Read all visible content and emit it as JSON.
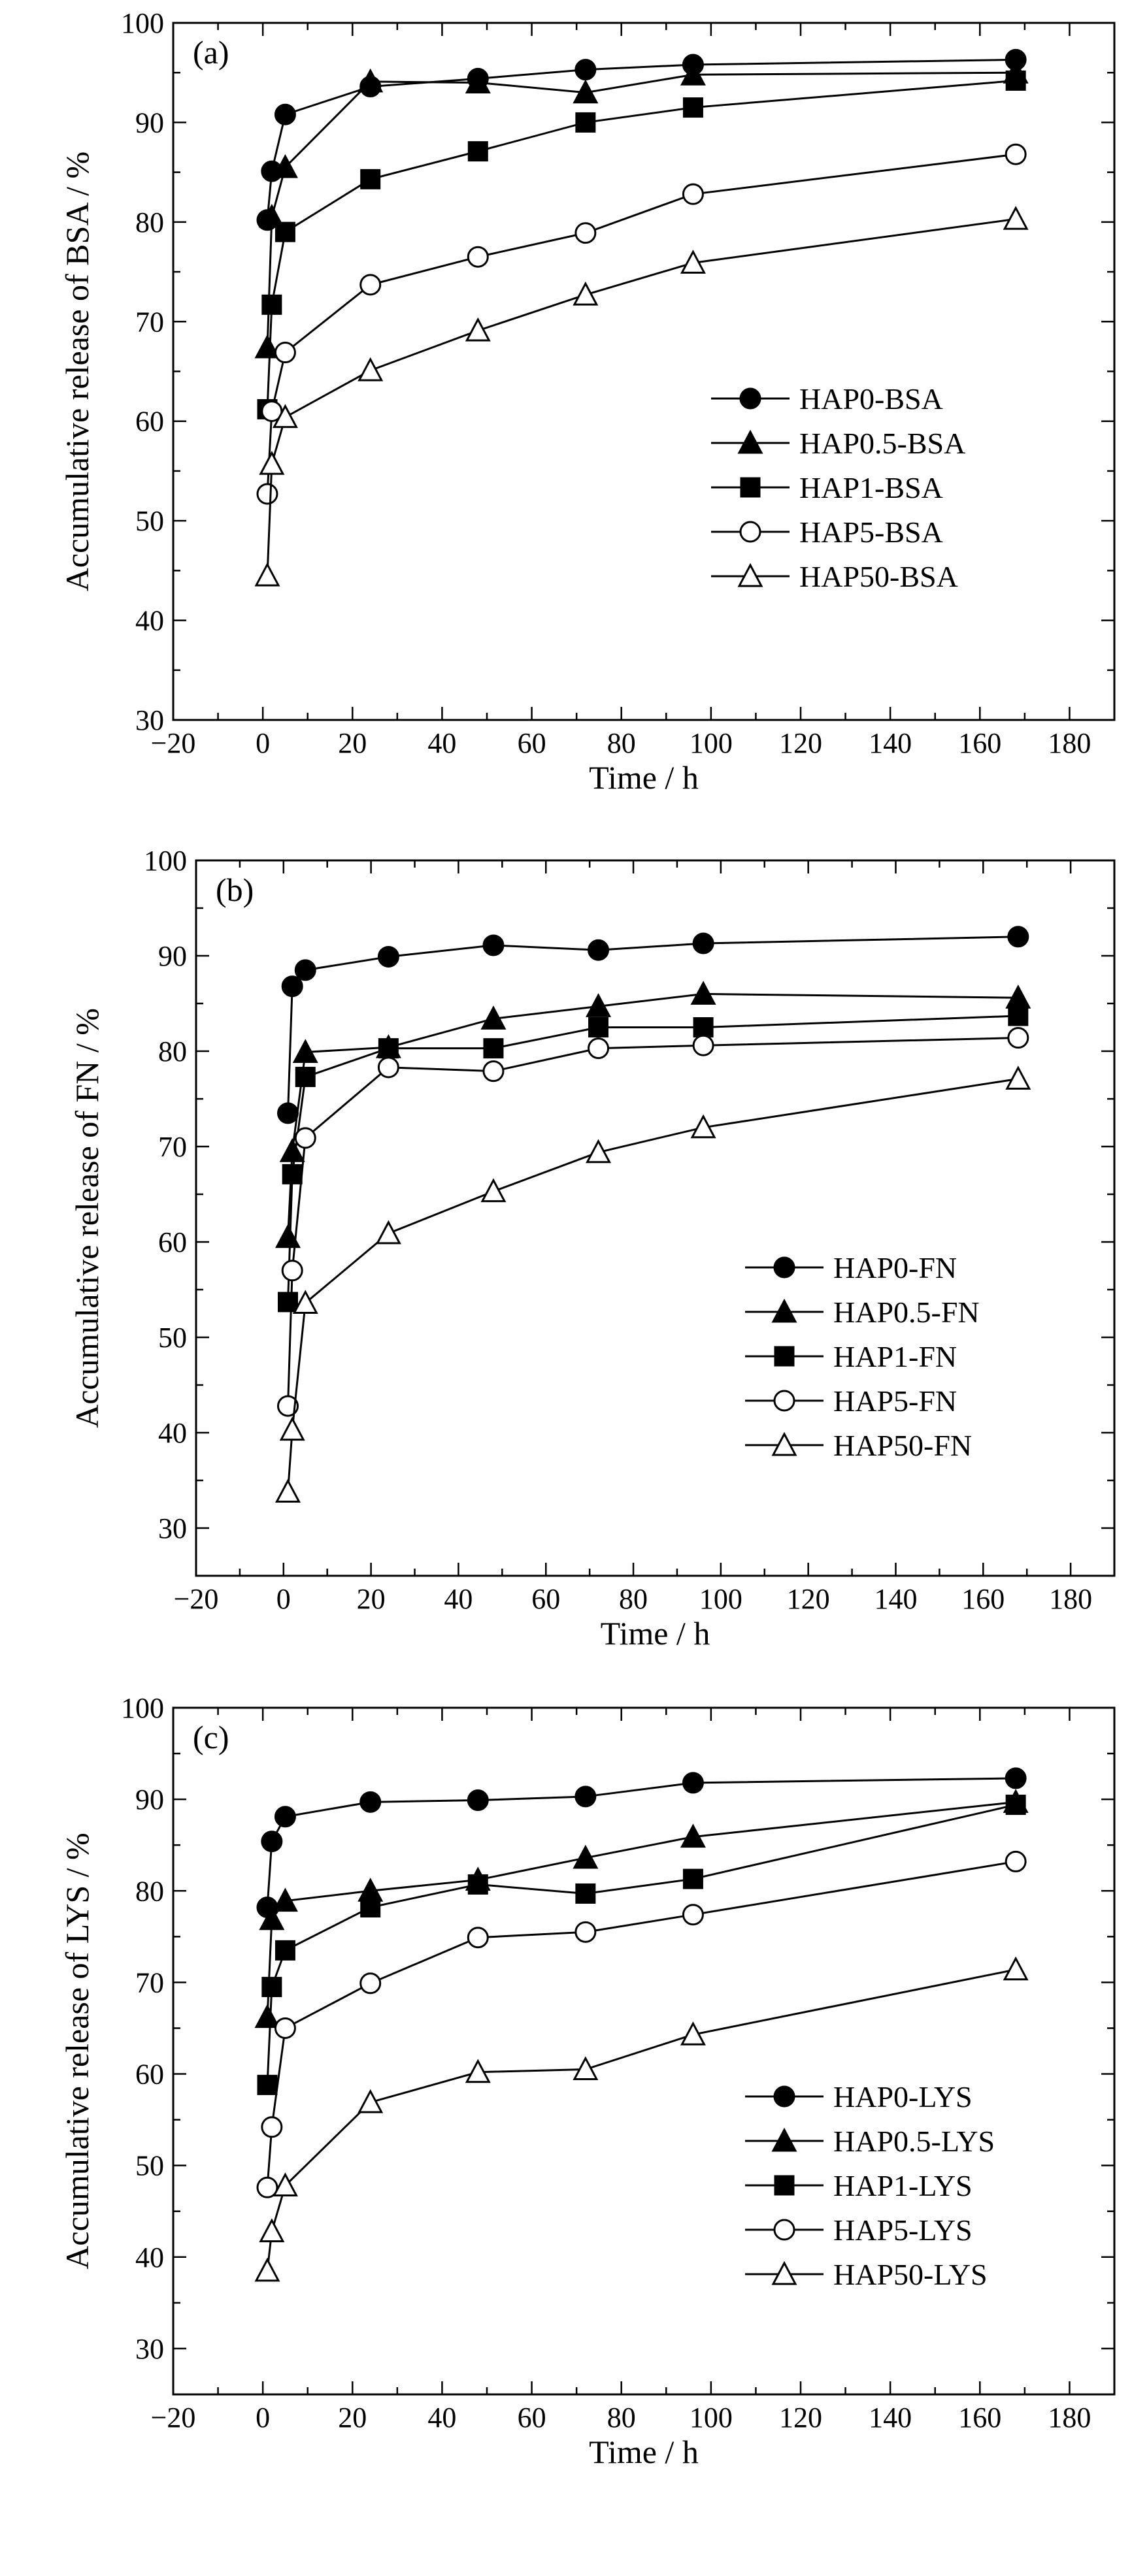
{
  "colors": {
    "ink": "#000000",
    "hollow": "#ffffff",
    "background": "#ffffff"
  },
  "chart_data": [
    {
      "type": "line",
      "panel_label": "(a)",
      "xlabel": "Time / h",
      "ylabel": "Accumulative release of BSA / %",
      "xlim": [
        -20,
        190
      ],
      "ylim": [
        30,
        100
      ],
      "x_ticks": [
        -20,
        0,
        20,
        40,
        60,
        80,
        100,
        120,
        140,
        160,
        180
      ],
      "y_ticks": [
        30,
        40,
        50,
        60,
        70,
        80,
        90,
        100
      ],
      "grid": false,
      "legend_position": "center-right",
      "x": [
        1,
        2,
        5,
        24,
        48,
        72,
        96,
        168
      ],
      "series": [
        {
          "name": "HAP0-BSA",
          "marker": "circle-filled",
          "values": [
            80.2,
            85.1,
            90.8,
            93.6,
            94.4,
            95.3,
            95.8,
            96.3
          ]
        },
        {
          "name": "HAP0.5-BSA",
          "marker": "triangle-filled",
          "values": [
            67.4,
            80.5,
            85.5,
            94.1,
            94.0,
            93.0,
            94.8,
            95.0
          ]
        },
        {
          "name": "HAP1-BSA",
          "marker": "square-filled",
          "values": [
            61.2,
            71.7,
            79.0,
            84.3,
            87.1,
            90.0,
            91.5,
            94.2
          ]
        },
        {
          "name": "HAP5-BSA",
          "marker": "circle-open",
          "values": [
            52.7,
            61.0,
            66.9,
            73.7,
            76.5,
            78.9,
            82.8,
            86.8
          ]
        },
        {
          "name": "HAP50-BSA",
          "marker": "triangle-open",
          "values": [
            44.5,
            55.7,
            60.4,
            65.1,
            69.1,
            72.7,
            75.9,
            80.3
          ]
        }
      ]
    },
    {
      "type": "line",
      "panel_label": "(b)",
      "xlabel": "Time / h",
      "ylabel": "Accumulative release of FN / %",
      "xlim": [
        -20,
        190
      ],
      "ylim": [
        25,
        100
      ],
      "x_ticks": [
        -20,
        0,
        20,
        40,
        60,
        80,
        100,
        120,
        140,
        160,
        180
      ],
      "y_ticks": [
        30,
        40,
        50,
        60,
        70,
        80,
        90,
        100
      ],
      "grid": false,
      "legend_position": "lower-right",
      "x": [
        1,
        2,
        5,
        24,
        48,
        72,
        96,
        168
      ],
      "series": [
        {
          "name": "HAP0-FN",
          "marker": "circle-filled",
          "values": [
            73.5,
            86.8,
            88.5,
            89.9,
            91.1,
            90.6,
            91.3,
            92.0
          ]
        },
        {
          "name": "HAP0.5-FN",
          "marker": "triangle-filled",
          "values": [
            60.5,
            69.5,
            79.9,
            80.4,
            83.4,
            84.7,
            86.0,
            85.6
          ]
        },
        {
          "name": "HAP1-FN",
          "marker": "square-filled",
          "values": [
            53.7,
            67.1,
            77.3,
            80.3,
            80.3,
            82.5,
            82.5,
            83.7
          ]
        },
        {
          "name": "HAP5-FN",
          "marker": "circle-open",
          "values": [
            42.8,
            57.0,
            70.9,
            78.3,
            77.9,
            80.3,
            80.6,
            81.4
          ]
        },
        {
          "name": "HAP50-FN",
          "marker": "triangle-open",
          "values": [
            33.8,
            40.3,
            53.6,
            60.9,
            65.3,
            69.4,
            72.0,
            77.1
          ]
        }
      ]
    },
    {
      "type": "line",
      "panel_label": "(c)",
      "xlabel": "Time / h",
      "ylabel": "Accumulative release of LYS / %",
      "xlim": [
        -20,
        190
      ],
      "ylim": [
        25,
        100
      ],
      "x_ticks": [
        -20,
        0,
        20,
        40,
        60,
        80,
        100,
        120,
        140,
        160,
        180
      ],
      "y_ticks": [
        30,
        40,
        50,
        60,
        70,
        80,
        90,
        100
      ],
      "grid": false,
      "legend_position": "lower-right",
      "x": [
        1,
        2,
        5,
        24,
        48,
        72,
        96,
        168
      ],
      "series": [
        {
          "name": "HAP0-LYS",
          "marker": "circle-filled",
          "values": [
            78.2,
            85.4,
            88.1,
            89.7,
            89.9,
            90.3,
            91.8,
            92.3
          ]
        },
        {
          "name": "HAP0.5-LYS",
          "marker": "triangle-filled",
          "values": [
            66.2,
            76.9,
            78.9,
            80.0,
            81.2,
            83.6,
            85.9,
            89.7
          ]
        },
        {
          "name": "HAP1-LYS",
          "marker": "square-filled",
          "values": [
            58.8,
            69.5,
            73.5,
            78.2,
            80.7,
            79.7,
            81.3,
            89.4
          ]
        },
        {
          "name": "HAP5-LYS",
          "marker": "circle-open",
          "values": [
            47.6,
            54.2,
            65.0,
            69.9,
            74.9,
            75.5,
            77.4,
            83.2
          ]
        },
        {
          "name": "HAP50-LYS",
          "marker": "triangle-open",
          "values": [
            38.5,
            42.8,
            47.8,
            56.9,
            60.2,
            60.5,
            64.3,
            71.4
          ]
        }
      ]
    }
  ]
}
